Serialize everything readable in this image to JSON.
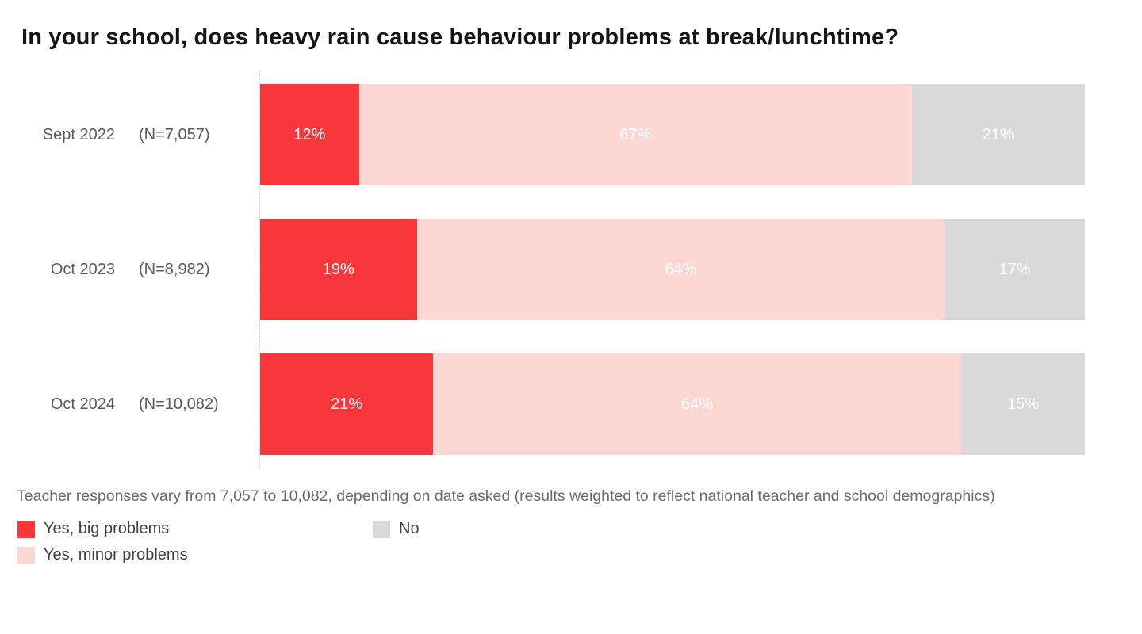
{
  "title": "In your school, does heavy rain cause behaviour problems at break/lunchtime?",
  "footnote": "Teacher responses vary from 7,057 to 10,082, depending on date asked (results weighted to reflect national teacher and school demographics)",
  "colors": {
    "yes_big": "#f8373c",
    "yes_minor": "#fcd7d3",
    "no": "#d9d9d9",
    "value_label": "#ffffff",
    "axis_line": "#cfcfcf"
  },
  "chart_data": {
    "type": "bar",
    "orientation": "horizontal",
    "stacked": true,
    "title": "In your school, does heavy rain cause behaviour problems at break/lunchtime?",
    "categories": [
      "Sept 2022",
      "Oct 2023",
      "Oct 2024"
    ],
    "n_labels": [
      "(N=7,057)",
      "(N=8,982)",
      "(N=10,082)"
    ],
    "series": [
      {
        "name": "Yes, big problems",
        "color": "#f8373c",
        "values": [
          12,
          19,
          21
        ]
      },
      {
        "name": "Yes, minor problems",
        "color": "#fcd7d3",
        "values": [
          67,
          64,
          64
        ]
      },
      {
        "name": "No",
        "color": "#d9d9d9",
        "values": [
          21,
          17,
          15
        ]
      }
    ],
    "value_suffix": "%",
    "xlim": [
      0,
      100
    ],
    "grid": false,
    "legend_position": "bottom",
    "value_labels": "centered-white"
  }
}
